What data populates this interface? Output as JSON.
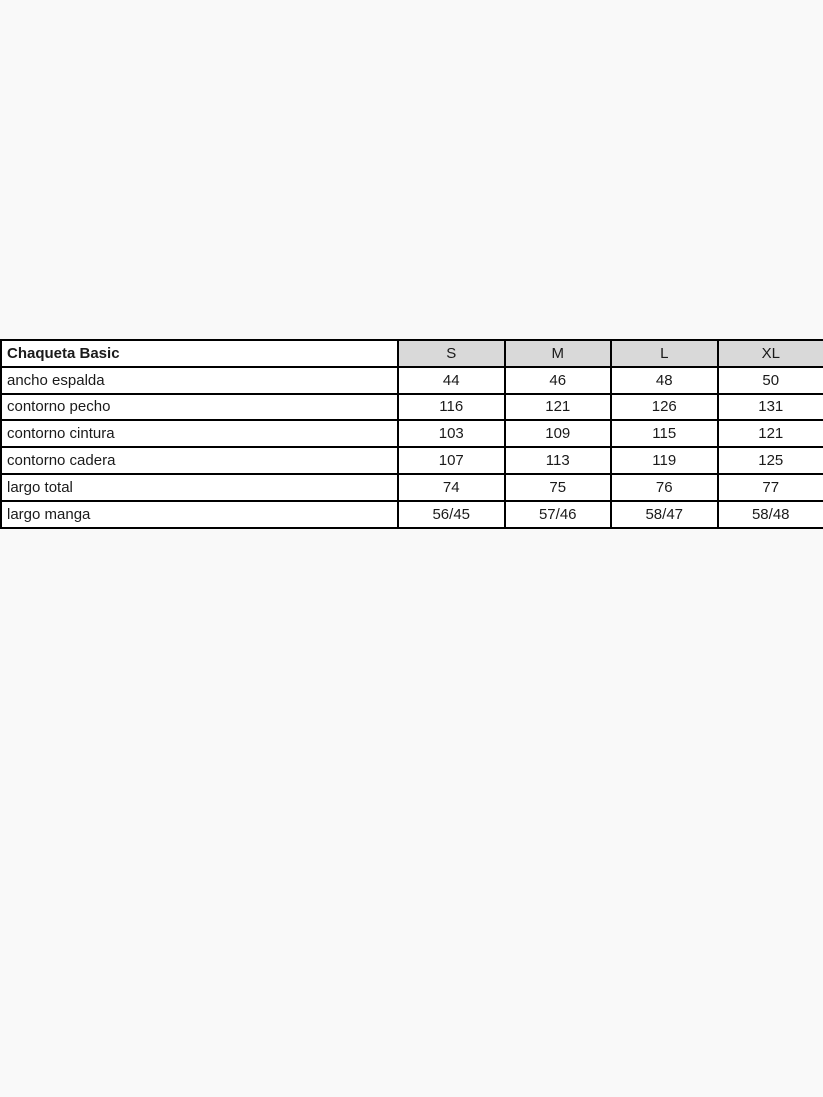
{
  "colors": {
    "page_background": "#f9f9f9",
    "table_background": "#ffffff",
    "header_cell_background": "#d9d9d9",
    "border": "#000000",
    "text": "#1a1a1a"
  },
  "chart_data": {
    "type": "table",
    "title": "Chaqueta Basic",
    "columns": [
      "S",
      "M",
      "L",
      "XL"
    ],
    "rows": [
      {
        "label": "ancho espalda",
        "values": [
          "44",
          "46",
          "48",
          "50"
        ]
      },
      {
        "label": "contorno pecho",
        "values": [
          "116",
          "121",
          "126",
          "131"
        ]
      },
      {
        "label": "contorno cintura",
        "values": [
          "103",
          "109",
          "115",
          "121"
        ]
      },
      {
        "label": "contorno cadera",
        "values": [
          "107",
          "113",
          "119",
          "125"
        ]
      },
      {
        "label": "largo total",
        "values": [
          "74",
          "75",
          "76",
          "77"
        ]
      },
      {
        "label": "largo manga",
        "values": [
          "56/45",
          "57/46",
          "58/47",
          "58/48"
        ]
      }
    ]
  }
}
